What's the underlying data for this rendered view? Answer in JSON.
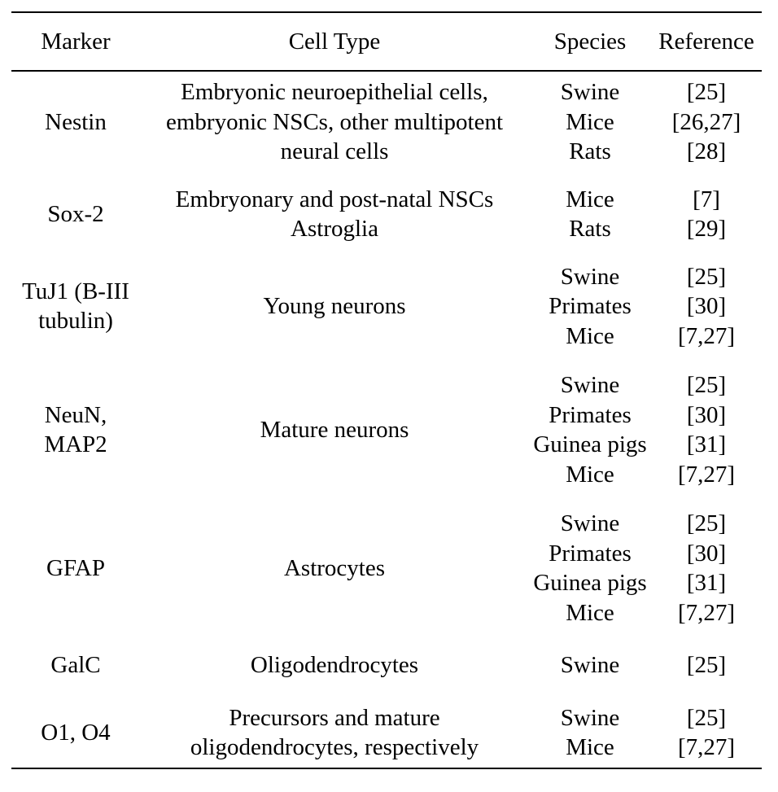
{
  "headers": {
    "marker": "Marker",
    "cell_type": "Cell Type",
    "species": "Species",
    "reference": "Reference"
  },
  "rows": [
    {
      "marker": [
        "Nestin"
      ],
      "cell_type": [
        "Embryonic neuroepithelial cells,",
        "embryonic NSCs, other multipotent",
        "neural cells"
      ],
      "species": [
        "Swine",
        "Mice",
        "Rats"
      ],
      "refs": [
        "[25]",
        "[26,27]",
        "[28]"
      ]
    },
    {
      "marker": [
        "Sox-2"
      ],
      "cell_type": [
        "Embryonary and post-natal NSCs",
        "Astroglia"
      ],
      "species": [
        "Mice",
        "Rats"
      ],
      "refs": [
        "[7]",
        "[29]"
      ]
    },
    {
      "marker": [
        "TuJ1 (B-III",
        "tubulin)"
      ],
      "cell_type": [
        "Young neurons"
      ],
      "species": [
        "Swine",
        "Primates",
        "Mice"
      ],
      "refs": [
        "[25]",
        "[30]",
        "[7,27]"
      ]
    },
    {
      "marker": [
        "NeuN,",
        "MAP2"
      ],
      "cell_type": [
        "Mature neurons"
      ],
      "species": [
        "Swine",
        "Primates",
        "Guinea pigs",
        "Mice"
      ],
      "refs": [
        "[25]",
        "[30]",
        "[31]",
        "[7,27]"
      ]
    },
    {
      "marker": [
        "GFAP"
      ],
      "cell_type": [
        "Astrocytes"
      ],
      "species": [
        "Swine",
        "Primates",
        "Guinea pigs",
        "Mice"
      ],
      "refs": [
        "[25]",
        "[30]",
        "[31]",
        "[7,27]"
      ]
    },
    {
      "marker": [
        "GalC"
      ],
      "cell_type": [
        "Oligodendrocytes"
      ],
      "species": [
        "Swine"
      ],
      "refs": [
        "[25]"
      ]
    },
    {
      "marker": [
        "O1, O4"
      ],
      "cell_type": [
        "Precursors and mature",
        "oligodendrocytes, respectively"
      ],
      "species": [
        "Swine",
        "Mice"
      ],
      "refs": [
        "[25]",
        "[7,27]"
      ]
    }
  ]
}
